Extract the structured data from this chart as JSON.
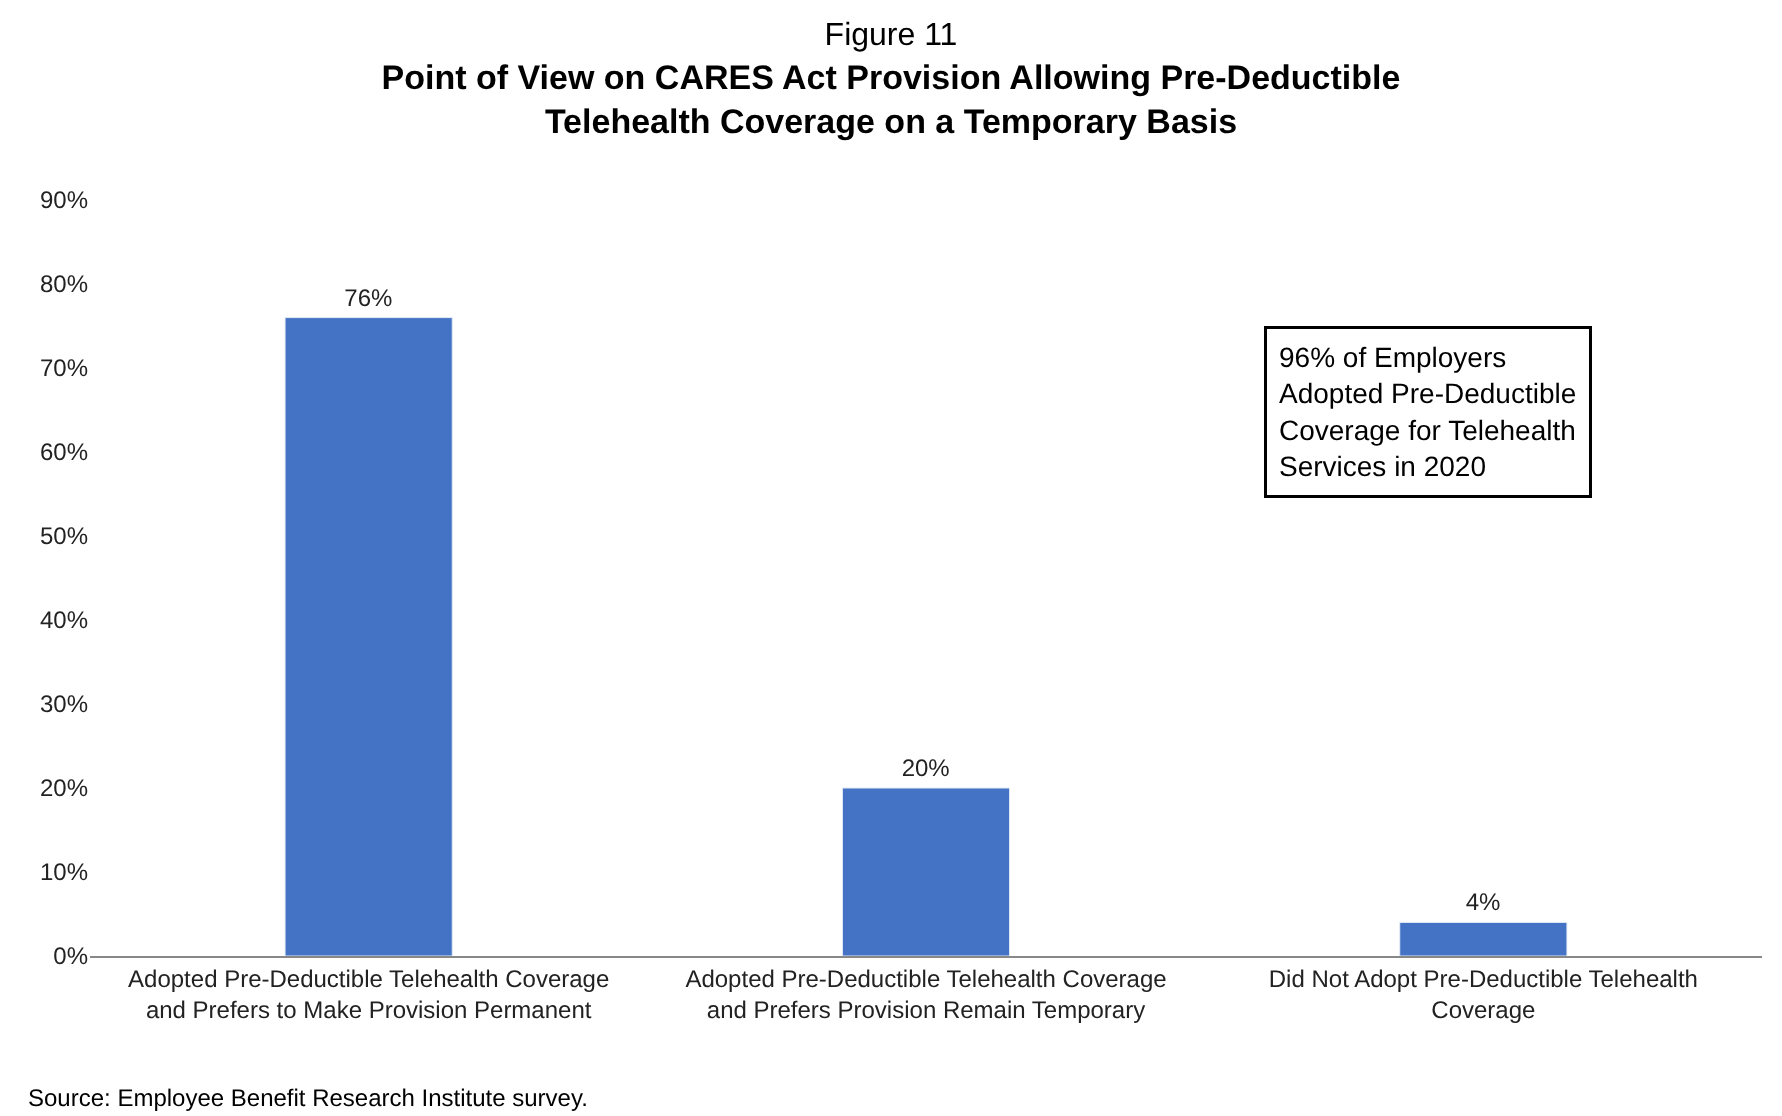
{
  "chart_data": {
    "type": "bar",
    "title": "Figure 11",
    "subtitle": "Point of View on CARES Act Provision Allowing Pre-Deductible Telehealth Coverage on a Temporary Basis",
    "categories": [
      "Adopted Pre-Deductible Telehealth Coverage and Prefers to Make Provision Permanent",
      "Adopted Pre-Deductible Telehealth Coverage and Prefers Provision Remain Temporary",
      "Did Not Adopt Pre-Deductible Telehealth Coverage"
    ],
    "values": [
      76,
      20,
      4
    ],
    "value_labels": [
      "76%",
      "20%",
      "4%"
    ],
    "color": "#4472c4",
    "ylim": [
      0,
      90
    ],
    "yticks": [
      {
        "value": 0,
        "label": "0%"
      },
      {
        "value": 10,
        "label": "10%"
      },
      {
        "value": 20,
        "label": "20%"
      },
      {
        "value": 30,
        "label": "30%"
      },
      {
        "value": 40,
        "label": "40%"
      },
      {
        "value": 50,
        "label": "50%"
      },
      {
        "value": 60,
        "label": "60%"
      },
      {
        "value": 70,
        "label": "70%"
      },
      {
        "value": 80,
        "label": "80%"
      },
      {
        "value": 90,
        "label": "90%"
      }
    ],
    "legend": false,
    "annotations": [
      "96% of Employers\nAdopted Pre-Deductible\nCoverage for Telehealth\nServices in 2020",
      "Source: Employee Benefit Research Institute survey."
    ]
  }
}
